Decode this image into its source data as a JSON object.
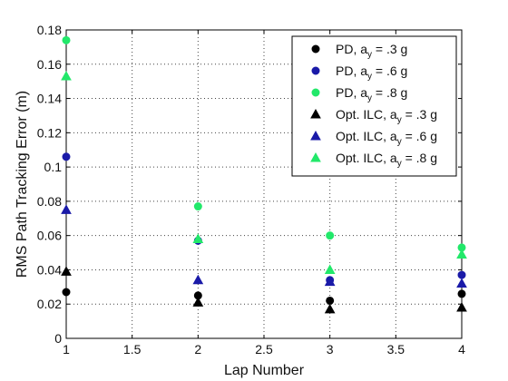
{
  "chart_data": {
    "type": "scatter",
    "xlabel": "Lap Number",
    "ylabel": "RMS Path Tracking Error (m)",
    "xlim": [
      1,
      4
    ],
    "ylim": [
      0,
      0.18
    ],
    "x_ticks": [
      1,
      1.5,
      2,
      2.5,
      3,
      3.5,
      4
    ],
    "x_tick_labels": [
      "1",
      "1.5",
      "2",
      "2.5",
      "3",
      "3.5",
      "4"
    ],
    "y_ticks": [
      0,
      0.02,
      0.04,
      0.06,
      0.08,
      0.1,
      0.12,
      0.14,
      0.16,
      0.18
    ],
    "y_tick_labels": [
      "0",
      "0.02",
      "0.04",
      "0.06",
      "0.08",
      "0.1",
      "0.12",
      "0.14",
      "0.16",
      "0.18"
    ],
    "grid": true,
    "legend_position": "top-right",
    "series": [
      {
        "legend_pre": "PD, a",
        "legend_sub": "y",
        "legend_post": " = .3 g",
        "marker": "circle",
        "color": "#000000",
        "x": [
          1,
          2,
          3,
          4
        ],
        "y": [
          0.027,
          0.025,
          0.022,
          0.026
        ]
      },
      {
        "legend_pre": "PD, a",
        "legend_sub": "y",
        "legend_post": " = .6 g",
        "marker": "circle",
        "color": "#1a1aa8",
        "x": [
          1,
          2,
          3,
          4
        ],
        "y": [
          0.106,
          0.057,
          0.034,
          0.037
        ]
      },
      {
        "legend_pre": "PD, a",
        "legend_sub": "y",
        "legend_post": " = .8 g",
        "marker": "circle",
        "color": "#22e86a",
        "x": [
          1,
          2,
          3,
          4
        ],
        "y": [
          0.174,
          0.077,
          0.06,
          0.053
        ]
      },
      {
        "legend_pre": "Opt. ILC, a",
        "legend_sub": "y",
        "legend_post": " = .3 g",
        "marker": "triangle",
        "color": "#000000",
        "x": [
          1,
          2,
          3,
          4
        ],
        "y": [
          0.039,
          0.021,
          0.017,
          0.018
        ]
      },
      {
        "legend_pre": "Opt. ILC, a",
        "legend_sub": "y",
        "legend_post": " = .6 g",
        "marker": "triangle",
        "color": "#1a1aa8",
        "x": [
          1,
          2,
          3,
          4
        ],
        "y": [
          0.075,
          0.034,
          0.033,
          0.032
        ]
      },
      {
        "legend_pre": "Opt. ILC, a",
        "legend_sub": "y",
        "legend_post": " = .8 g",
        "marker": "triangle",
        "color": "#22e86a",
        "x": [
          1,
          2,
          3,
          4
        ],
        "y": [
          0.153,
          0.058,
          0.04,
          0.049
        ]
      }
    ]
  }
}
